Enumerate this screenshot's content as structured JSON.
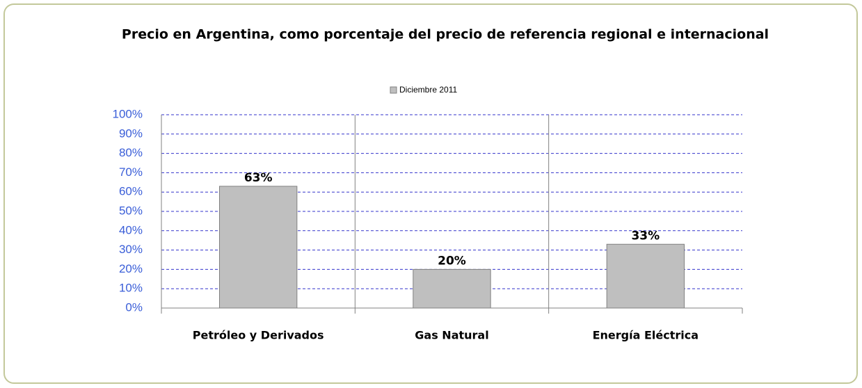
{
  "chart_data": {
    "type": "bar",
    "title": "Precio en Argentina, como porcentaje del precio de referencia regional e internacional",
    "categories": [
      "Petróleo y Derivados",
      "Gas Natural",
      "Energía Eléctrica"
    ],
    "series": [
      {
        "name": "Diciembre 2011",
        "color": "#bfbfbf",
        "values": [
          63,
          20,
          33
        ],
        "value_labels": [
          "63%",
          "20%",
          "33%"
        ]
      }
    ],
    "ylim": [
      0,
      100
    ],
    "yticks": [
      {
        "value": 0,
        "label": "0%"
      },
      {
        "value": 10,
        "label": "10%"
      },
      {
        "value": 20,
        "label": "20%"
      },
      {
        "value": 30,
        "label": "30%"
      },
      {
        "value": 40,
        "label": "40%"
      },
      {
        "value": 50,
        "label": "50%"
      },
      {
        "value": 60,
        "label": "60%"
      },
      {
        "value": 70,
        "label": "70%"
      },
      {
        "value": 80,
        "label": "80%"
      },
      {
        "value": 90,
        "label": "90%"
      },
      {
        "value": 100,
        "label": "100%"
      }
    ],
    "grid": true,
    "legend": "top"
  }
}
